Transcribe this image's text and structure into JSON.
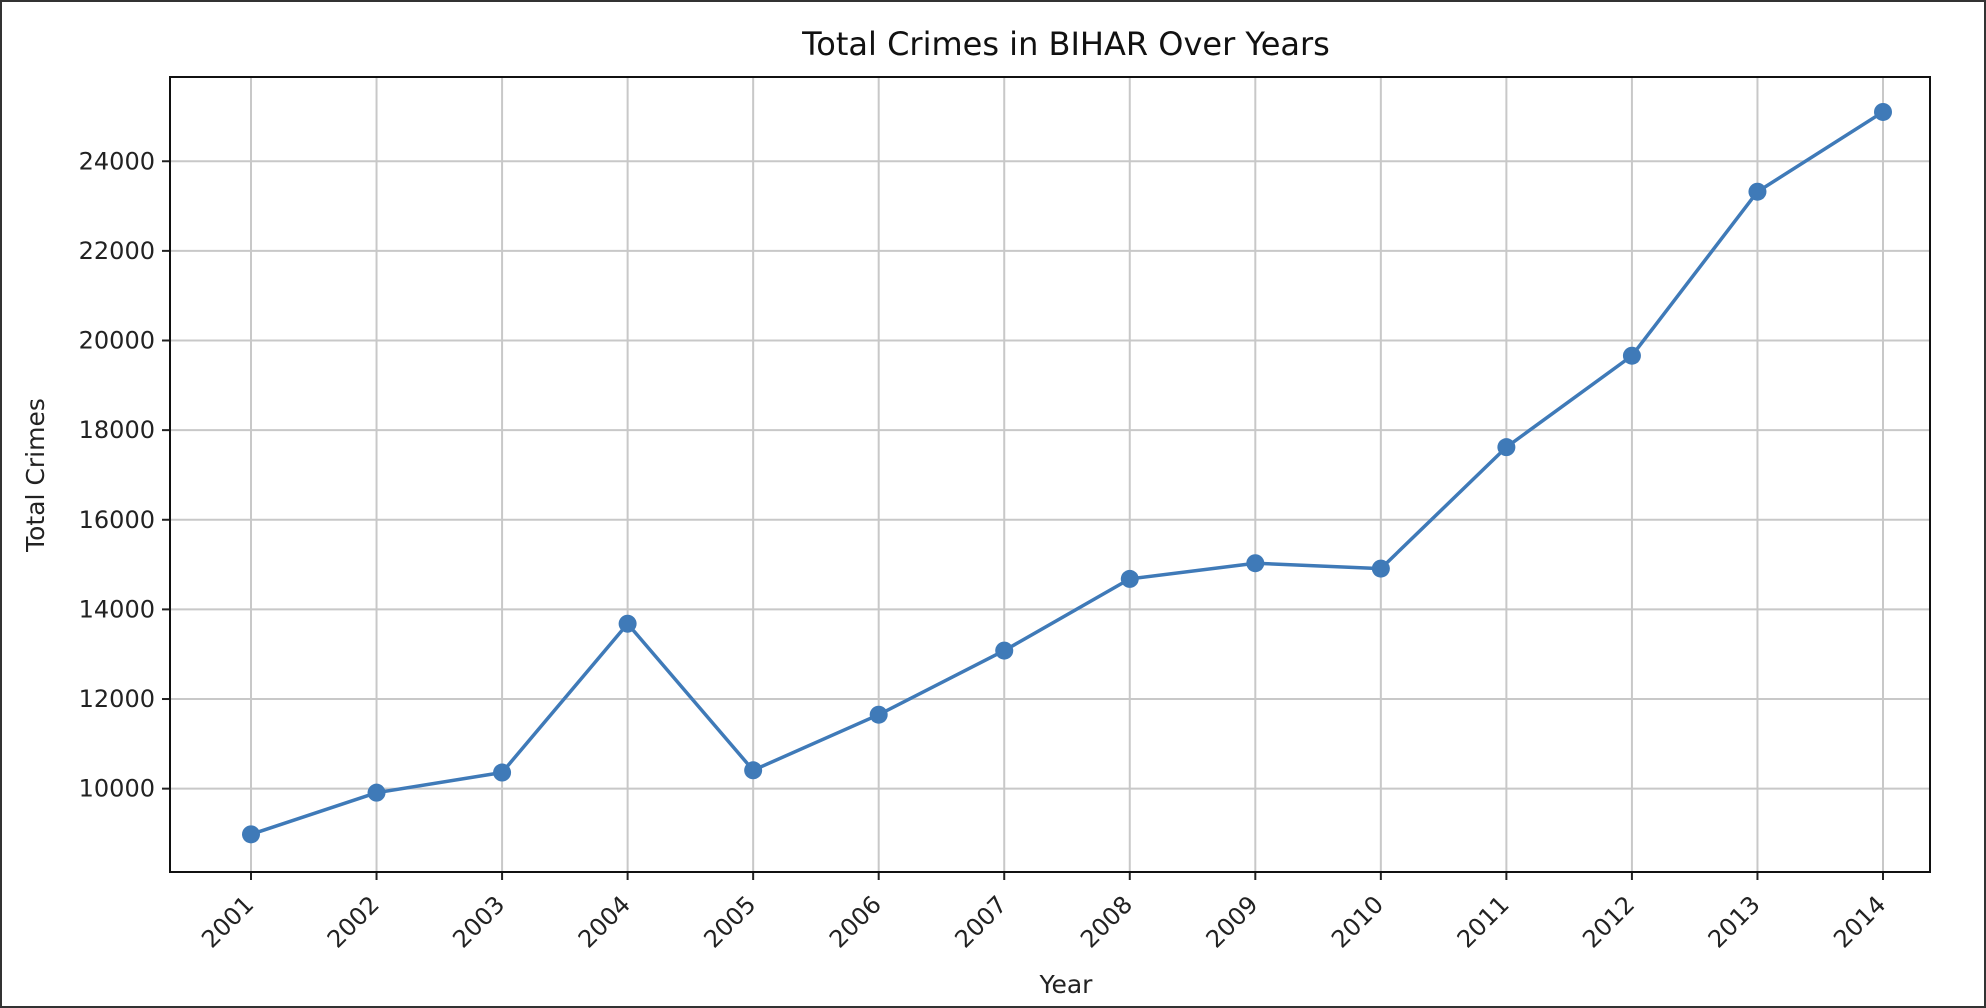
{
  "chart_data": {
    "type": "line",
    "title": "Total Crimes in BIHAR Over Years",
    "xlabel": "Year",
    "ylabel": "Total Crimes",
    "categories": [
      "2001",
      "2002",
      "2003",
      "2004",
      "2005",
      "2006",
      "2007",
      "2008",
      "2009",
      "2010",
      "2011",
      "2012",
      "2013",
      "2014"
    ],
    "series": [
      {
        "values": [
          8980,
          9910,
          10360,
          13680,
          10410,
          11650,
          13080,
          14680,
          15030,
          14910,
          17620,
          19660,
          23320,
          25100
        ]
      }
    ],
    "ylim": [
      8140,
      25880
    ],
    "yticks": [
      10000,
      12000,
      14000,
      16000,
      18000,
      20000,
      22000,
      24000
    ],
    "ytick_labels": [
      "10000",
      "12000",
      "14000",
      "16000",
      "18000",
      "20000",
      "22000",
      "24000"
    ],
    "grid": true,
    "legend": "none",
    "marker": "circle",
    "line_color": "#3f7ab8",
    "grid_color": "#c8c8c8"
  }
}
